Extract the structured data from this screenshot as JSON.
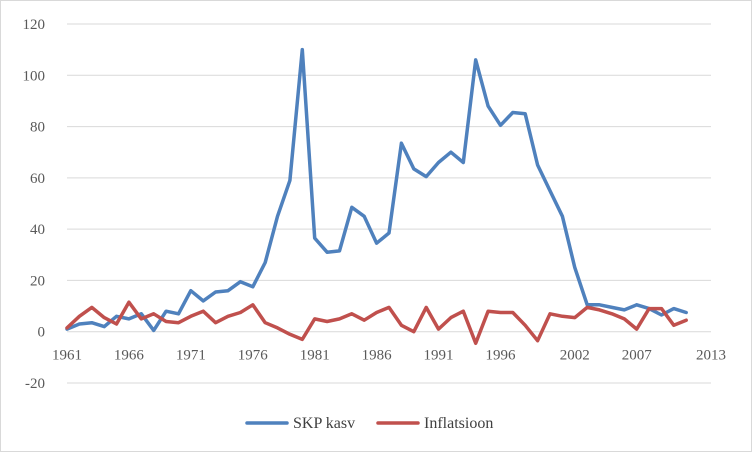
{
  "chart_data": {
    "type": "line",
    "title": "",
    "xlabel": "",
    "ylabel": "",
    "ylim": [
      -20,
      120
    ],
    "yticks": [
      -20,
      0,
      20,
      40,
      60,
      80,
      100,
      120
    ],
    "xtick_labels": [
      "1961",
      "1966",
      "1971",
      "1976",
      "1981",
      "1986",
      "1991",
      "1996",
      "2002",
      "2007",
      "2013"
    ],
    "grid": "horizontal",
    "legend_position": "bottom",
    "x": [
      1961,
      1962,
      1963,
      1964,
      1965,
      1966,
      1967,
      1968,
      1969,
      1970,
      1971,
      1972,
      1973,
      1974,
      1975,
      1976,
      1977,
      1978,
      1979,
      1980,
      1981,
      1982,
      1983,
      1984,
      1985,
      1986,
      1987,
      1988,
      1989,
      1990,
      1991,
      1992,
      1993,
      1994,
      1995,
      1996,
      1997,
      1998,
      1999,
      2000,
      2001,
      2002,
      2003,
      2004,
      2005,
      2006,
      2007,
      2008,
      2009,
      2010,
      2011,
      2012,
      2013
    ],
    "series": [
      {
        "name": "SKP kasv",
        "color": "#4f81bd",
        "values": [
          1,
          3,
          3.5,
          2,
          6,
          5,
          7,
          0.5,
          8,
          7,
          16,
          12,
          15.5,
          16,
          19.5,
          17.5,
          27,
          45,
          59,
          110,
          36.5,
          31,
          31.5,
          48.5,
          45,
          34.5,
          38.5,
          73.5,
          63.5,
          60.5,
          66,
          70,
          66,
          106,
          88,
          80.5,
          85.5,
          85,
          65,
          55,
          45,
          25,
          10.5,
          10.5,
          9.5,
          8.5,
          10.5,
          9,
          6.5,
          9,
          7.5,
          null,
          null
        ]
      },
      {
        "name": "Inflatsioon",
        "color": "#c0504d",
        "values": [
          1.5,
          6,
          9.5,
          5.5,
          3,
          11.5,
          5,
          7,
          4,
          3.5,
          6,
          8,
          3.5,
          6,
          7.5,
          10.5,
          3.5,
          1.5,
          -1,
          -3,
          5,
          4,
          5,
          7,
          4.5,
          7.5,
          9.5,
          2.5,
          0,
          9.5,
          1,
          5.5,
          8,
          -4.5,
          8,
          7.5,
          7.5,
          2.5,
          -3.5,
          7,
          6,
          5.5,
          9.5,
          8.5,
          7,
          5,
          1,
          9,
          9,
          2.5,
          4.5,
          null,
          null
        ]
      }
    ]
  }
}
